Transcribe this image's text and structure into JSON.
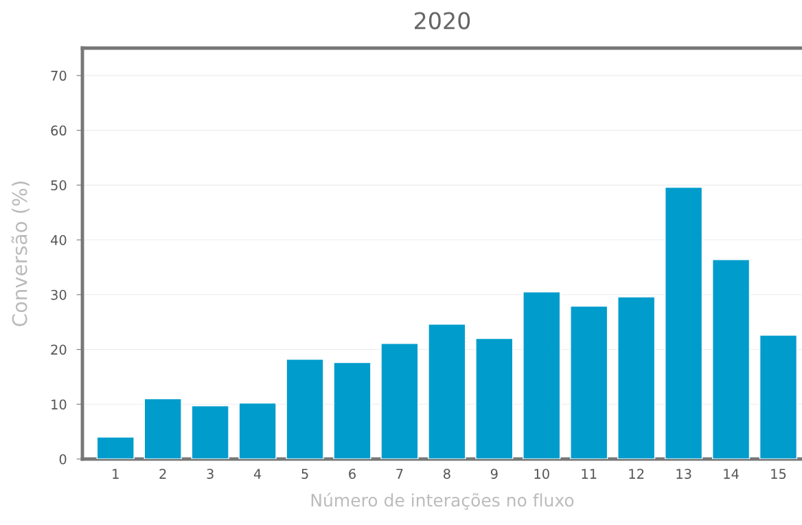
{
  "chart_data": {
    "type": "bar",
    "title": "2020",
    "xlabel": "Número de interações no fluxo",
    "ylabel": "Conversão (%)",
    "categories": [
      "1",
      "2",
      "3",
      "4",
      "5",
      "6",
      "7",
      "8",
      "9",
      "10",
      "11",
      "12",
      "13",
      "14",
      "15"
    ],
    "series": [
      {
        "color": "#009ccc",
        "values": [
          4.0,
          11.0,
          9.7,
          10.2,
          18.2,
          17.6,
          21.1,
          24.6,
          22.0,
          30.5,
          27.9,
          29.6,
          49.6,
          36.4,
          22.6
        ]
      }
    ],
    "ylim": [
      0,
      75
    ],
    "yticks": [
      0,
      10,
      20,
      30,
      40,
      50,
      60,
      70
    ],
    "grid": "y",
    "legend": false
  }
}
